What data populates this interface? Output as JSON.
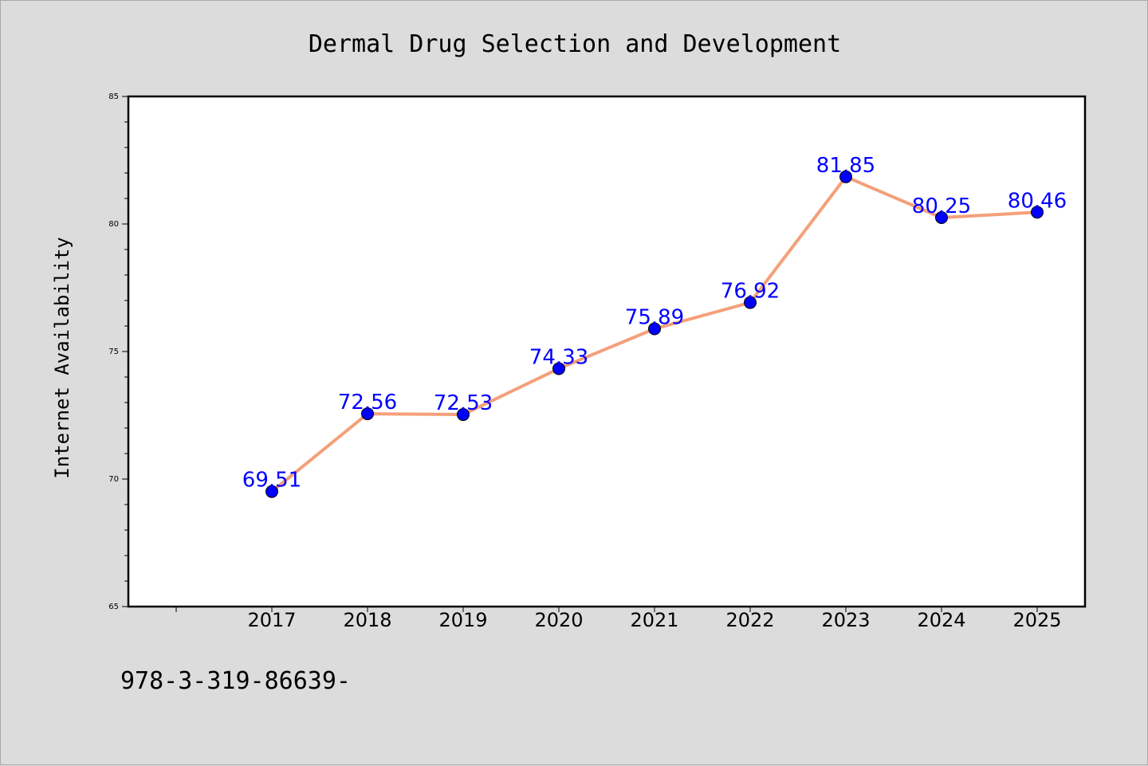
{
  "chart_data": {
    "type": "line",
    "title": "Dermal Drug Selection and Development",
    "xlabel": "",
    "ylabel": "Internet Availability",
    "categories": [
      "2017",
      "2018",
      "2019",
      "2020",
      "2021",
      "2022",
      "2023",
      "2024",
      "2025"
    ],
    "series": [
      {
        "values": [
          69.51,
          72.56,
          72.53,
          74.33,
          75.89,
          76.92,
          81.85,
          80.25,
          80.46
        ]
      }
    ],
    "data_labels": [
      "69.51",
      "72.56",
      "72.53",
      "74.33",
      "75.89",
      "76.92",
      "81.85",
      "80.25",
      "80.46"
    ],
    "ylim": [
      65,
      85
    ],
    "yticks": [
      "65",
      "70",
      "75",
      "80",
      "85"
    ],
    "grid": false,
    "legend": "none",
    "line_color": "#f4a07a",
    "marker_color": "#0000ff"
  },
  "footer": {
    "text": "978-3-319-86639-"
  }
}
